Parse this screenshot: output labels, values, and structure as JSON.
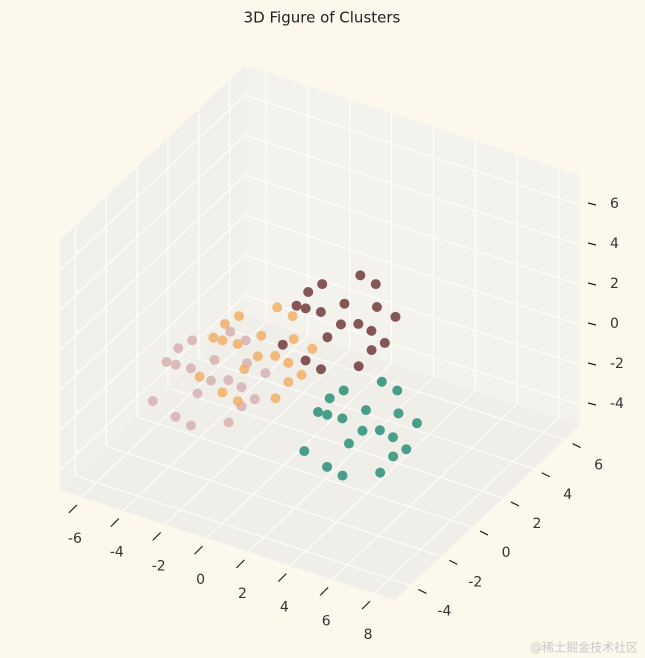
{
  "chart_data": {
    "type": "scatter3d",
    "title": "3D Figure of Clusters",
    "xlim": [
      -7,
      9
    ],
    "ylim": [
      -5,
      7
    ],
    "zlim": [
      -5,
      7.5
    ],
    "xticks": [
      -6,
      -4,
      -2,
      0,
      2,
      4,
      6,
      8
    ],
    "yticks": [
      -4,
      -2,
      0,
      2,
      4,
      6
    ],
    "zticks": [
      -4,
      -2,
      0,
      2,
      4,
      6
    ],
    "grid": true,
    "series": [
      {
        "color": "#d4aeae",
        "x": [
          -2,
          -0.8,
          -3.4,
          -1.5,
          -2.8,
          -0.2,
          -3.9,
          -1.7,
          -2.4,
          -1,
          -3.1,
          0.2,
          -4.3,
          -1.3,
          -2.6,
          -0.5,
          -3.6,
          -1.9,
          -1.1,
          -2.2
        ],
        "y": [
          -2,
          -2.5,
          -1.4,
          -0.7,
          -3.2,
          -1.6,
          -2.3,
          -3.7,
          -0.2,
          -1.1,
          -2.8,
          -3,
          -1,
          -1.8,
          -2.4,
          -0.5,
          -3.6,
          0.2,
          -4.1,
          -1.5
        ],
        "z": [
          0,
          0.8,
          -0.3,
          -1.1,
          1.4,
          -0.6,
          0.5,
          -0.9,
          1,
          1.7,
          -1.6,
          0.2,
          0.1,
          -2,
          2.1,
          -0.2,
          -0.4,
          -0.7,
          1.2,
          0.6
        ]
      },
      {
        "color": "#f3ab60",
        "x": [
          -0.5,
          0.7,
          -1.9,
          0,
          -1.3,
          1.3,
          -2.4,
          -0.2,
          -0.9,
          0.5,
          -1.6,
          1.7,
          -2.8,
          0.2,
          -1.1,
          1,
          -2.1,
          -0.4,
          0.4,
          -0.7
        ],
        "y": [
          -1,
          -1.5,
          -0.4,
          0.3,
          -2.2,
          -0.6,
          -1.3,
          -2.7,
          0.8,
          -0.1,
          -1.8,
          -2,
          0,
          -0.8,
          -1.4,
          0.5,
          -2.6,
          1.2,
          -3.1,
          -0.5
        ],
        "z": [
          1,
          1.8,
          0.7,
          -0.1,
          2.4,
          0.4,
          1.5,
          0.1,
          2,
          2.7,
          -0.6,
          1.2,
          1.1,
          -1,
          3.1,
          0.8,
          0.6,
          0.3,
          2.2,
          1.6
        ]
      },
      {
        "color": "#682f2f",
        "x": [
          2,
          3.2,
          0.6,
          2.5,
          1.2,
          3.8,
          0.1,
          2.3,
          1.6,
          3,
          0.9,
          4.2,
          -0.3,
          2.7,
          1.4,
          3.5,
          0.4,
          2.1,
          2.9,
          1.8
        ],
        "y": [
          1,
          0.5,
          1.6,
          2.3,
          -0.2,
          1.4,
          0.7,
          -0.7,
          2.8,
          1.9,
          0.2,
          0,
          2,
          1.2,
          0.6,
          2.5,
          -0.6,
          3.2,
          -1.1,
          1.5
        ],
        "z": [
          2,
          2.8,
          1.7,
          0.9,
          3.4,
          1.4,
          2.5,
          1.1,
          3,
          3.7,
          0.4,
          2.2,
          2.1,
          0,
          4.1,
          1.8,
          1.6,
          1.3,
          3.2,
          2.6
        ]
      },
      {
        "color": "#1f8a70",
        "x": [
          4.5,
          5.7,
          3.1,
          5,
          3.7,
          6.3,
          2.6,
          4.8,
          4.1,
          5.5,
          3.4,
          6.7,
          2.2,
          5.2,
          3.9,
          6,
          2.9,
          4.6,
          5.4,
          4.3
        ],
        "y": [
          -1,
          -1.5,
          -0.4,
          0.3,
          -2.2,
          -0.6,
          -1.3,
          -2.7,
          0.8,
          -0.1,
          -1.8,
          -2,
          0,
          -0.8,
          -1.4,
          0.5,
          -2.6,
          1.2,
          -3.1,
          -0.5
        ],
        "z": [
          -1,
          -0.2,
          -1.3,
          -2.1,
          0.4,
          -1.6,
          -0.5,
          -1.9,
          0,
          0.7,
          -2.6,
          -0.8,
          -0.9,
          -3,
          1.1,
          -1.2,
          -1.4,
          -1.7,
          0.2,
          -0.4
        ]
      }
    ],
    "watermark": "@稀土掘金技术社区"
  }
}
